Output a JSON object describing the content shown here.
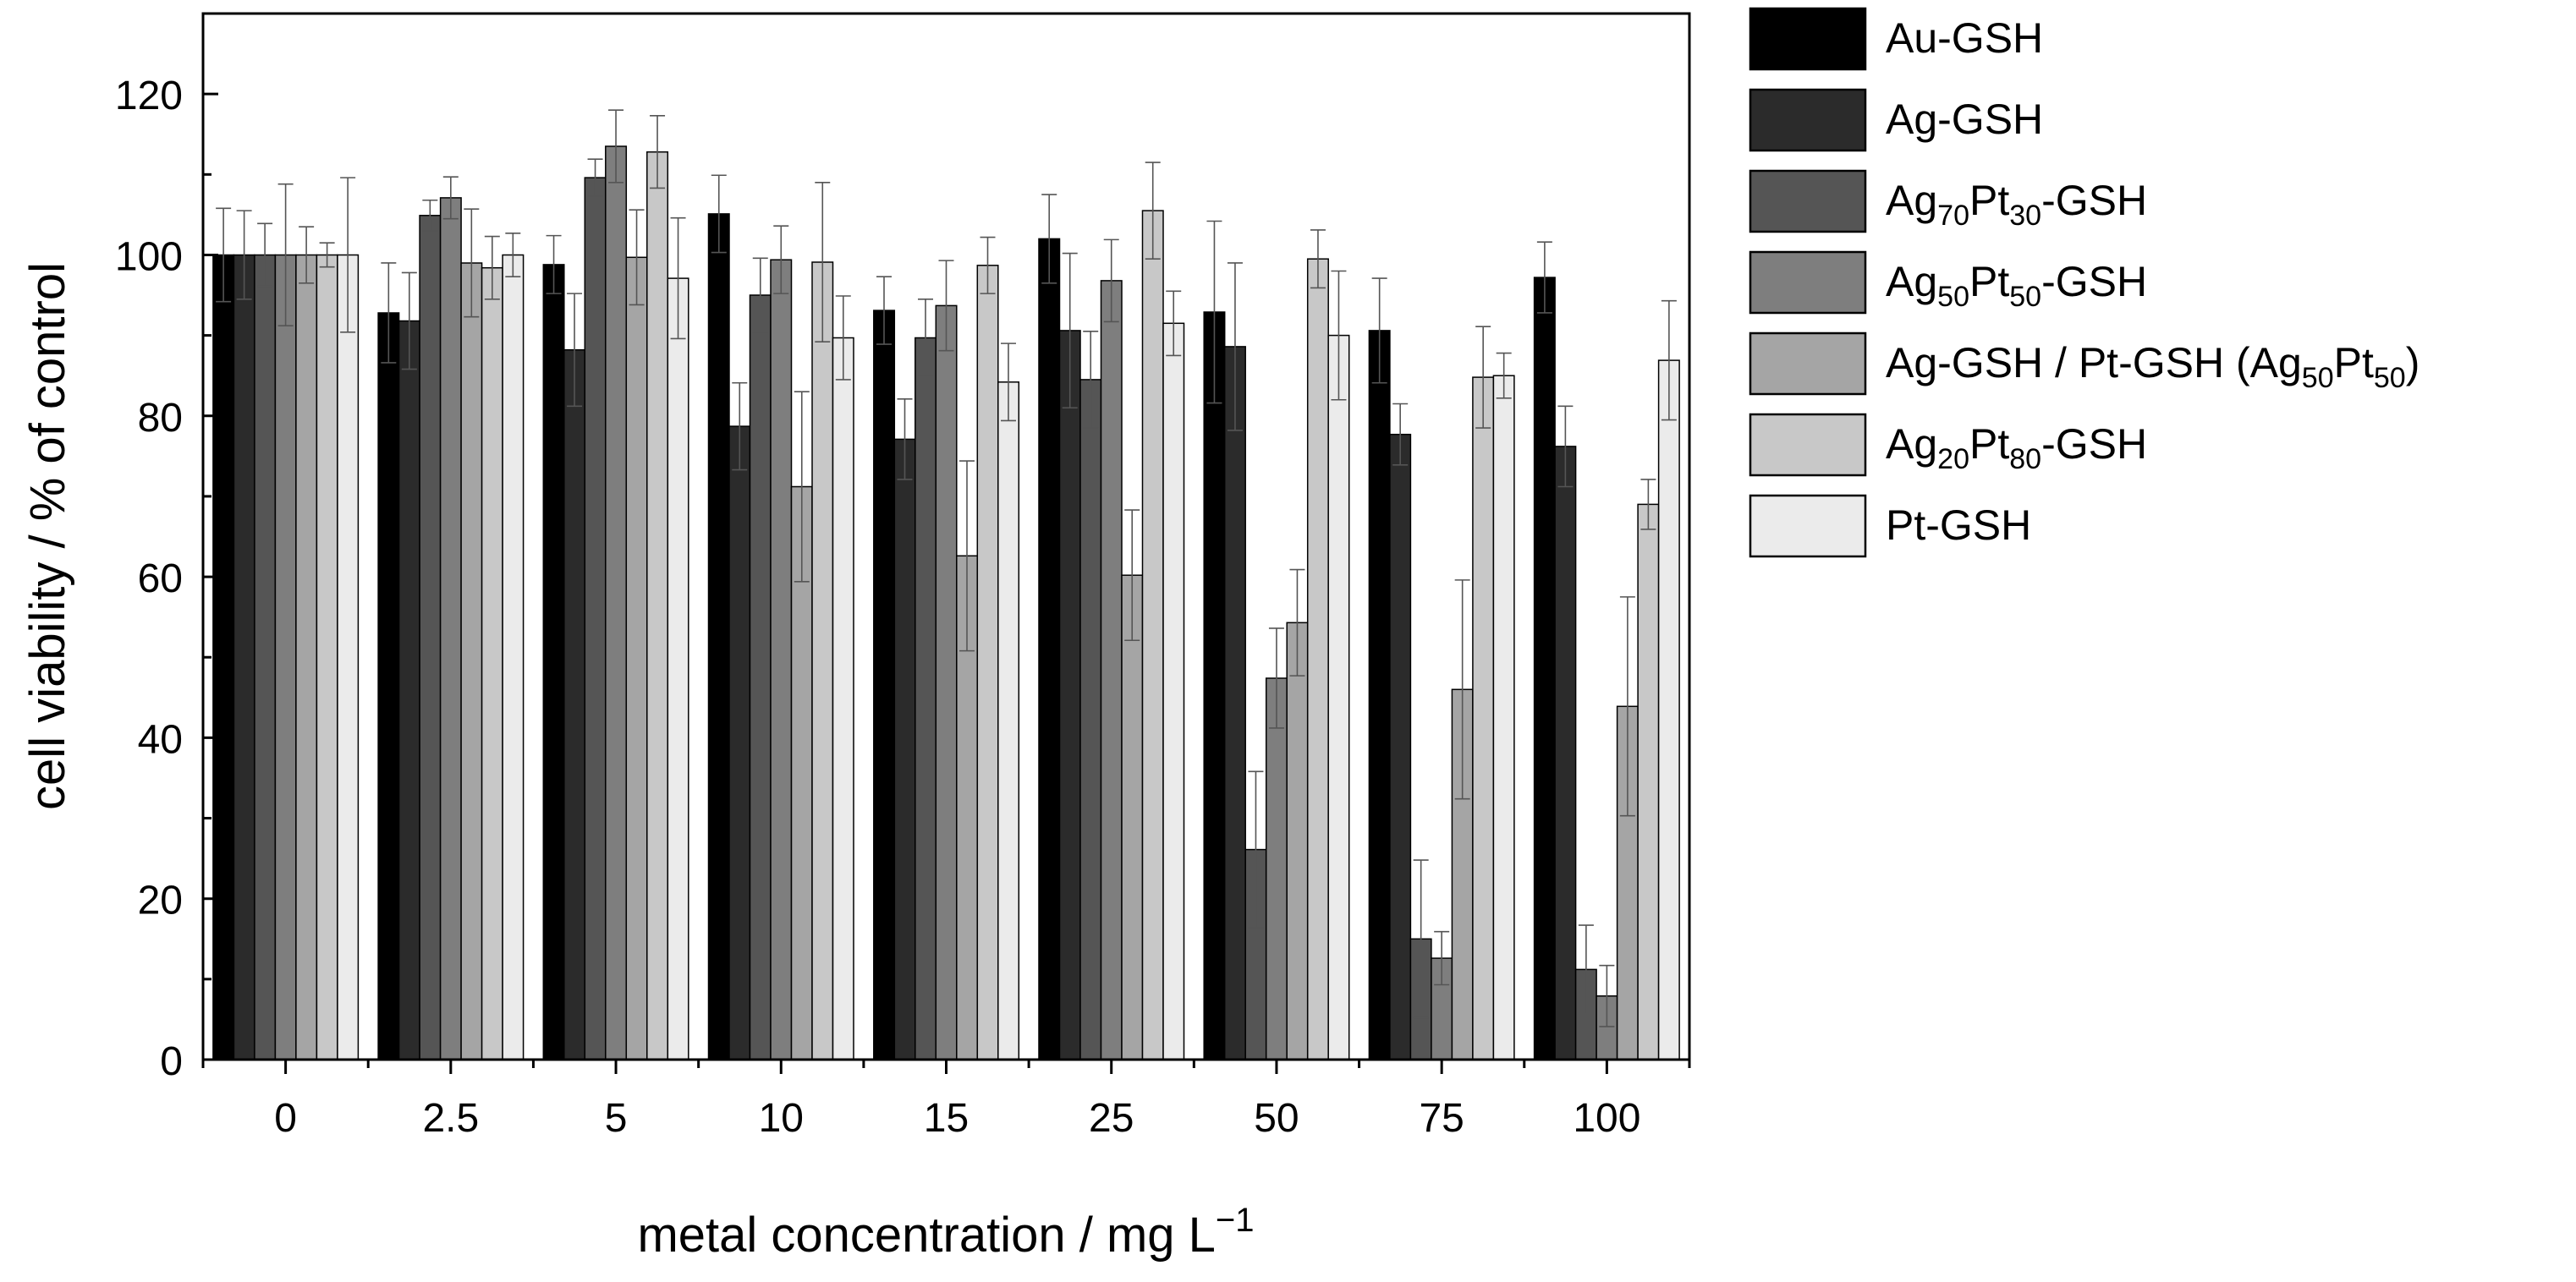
{
  "chart_data": {
    "type": "bar",
    "title": "",
    "xlabel_text": "metal concentration / mg L",
    "xlabel_sup": "−1",
    "ylabel": "cell viability / % of control",
    "ylim": [
      0,
      130
    ],
    "yticks": [
      0,
      20,
      40,
      60,
      80,
      100,
      120
    ],
    "grid": false,
    "legend_position": "outside right",
    "categories": [
      "0",
      "2.5",
      "5",
      "10",
      "15",
      "25",
      "50",
      "75",
      "100"
    ],
    "series": [
      {
        "name": "Au-GSH",
        "color": "#000000",
        "values": [
          100,
          92.8,
          98.8,
          105.1,
          93.1,
          102.0,
          92.9,
          90.6,
          97.2
        ],
        "errors": [
          5.8,
          6.2,
          3.6,
          4.8,
          4.2,
          5.5,
          11.3,
          6.5,
          4.4
        ]
      },
      {
        "name": "Ag-GSH",
        "color": "#2b2b2b",
        "values": [
          100,
          91.8,
          88.2,
          78.7,
          77.1,
          90.6,
          88.6,
          77.7,
          76.2
        ],
        "errors": [
          5.5,
          6.0,
          7.0,
          5.4,
          5.0,
          9.6,
          10.4,
          3.8,
          5.0
        ]
      },
      {
        "name": "Ag70Pt30-GSH",
        "name_parts": [
          "Ag",
          "70",
          "Pt",
          "30",
          "-GSH"
        ],
        "color": "#555555",
        "values": [
          100,
          104.9,
          109.6,
          95.0,
          89.7,
          84.5,
          26.1,
          15.0,
          11.2
        ],
        "errors": [
          3.9,
          1.9,
          2.3,
          4.6,
          4.8,
          6.0,
          9.7,
          9.8,
          5.5
        ]
      },
      {
        "name": "Ag50Pt50-GSH",
        "name_parts": [
          "Ag",
          "50",
          "Pt",
          "50",
          "-GSH"
        ],
        "color": "#7e7e7e",
        "values": [
          100,
          107.1,
          113.5,
          99.4,
          93.7,
          96.8,
          47.4,
          12.6,
          7.9
        ],
        "errors": [
          8.8,
          2.6,
          4.5,
          4.2,
          5.6,
          5.1,
          6.2,
          3.3,
          3.8
        ]
      },
      {
        "name": "Ag-GSH / Pt-GSH (Ag50Pt50)",
        "name_parts": [
          "Ag-GSH / Pt-GSH (Ag",
          "50",
          "Pt",
          "50",
          ")"
        ],
        "color": "#a5a5a5",
        "values": [
          100,
          99.0,
          99.7,
          71.2,
          62.6,
          60.2,
          54.3,
          46.0,
          43.9
        ],
        "errors": [
          3.5,
          6.7,
          5.9,
          11.8,
          11.8,
          8.1,
          6.6,
          13.6,
          13.6
        ]
      },
      {
        "name": "Ag20Pt80-GSH",
        "name_parts": [
          "Ag",
          "20",
          "Pt",
          "80",
          "-GSH"
        ],
        "color": "#c8c8c8",
        "values": [
          100,
          98.4,
          112.8,
          99.1,
          98.7,
          105.5,
          99.5,
          84.8,
          69.0
        ],
        "errors": [
          1.5,
          3.9,
          4.5,
          9.9,
          3.5,
          6.0,
          3.6,
          6.3,
          3.1
        ]
      },
      {
        "name": "Pt-GSH",
        "name_parts": [
          "Pt-GSH"
        ],
        "color": "#ebebeb",
        "values": [
          100,
          100.0,
          97.1,
          89.7,
          84.2,
          91.5,
          90.0,
          85.0,
          86.9
        ],
        "errors": [
          9.6,
          2.7,
          7.5,
          5.2,
          4.8,
          4.0,
          8.0,
          2.8,
          7.4
        ]
      }
    ]
  }
}
